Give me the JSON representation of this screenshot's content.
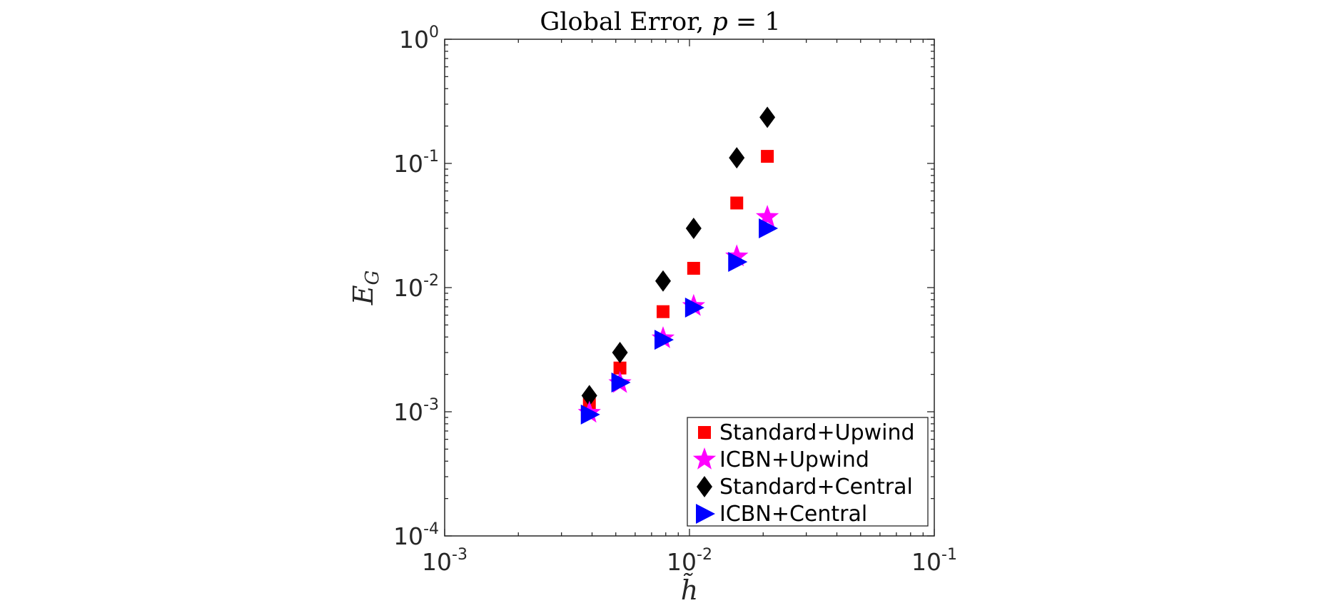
{
  "chart_data": {
    "type": "scatter",
    "title": "Global Error, p = 1",
    "xlabel": "h̃",
    "ylabel": "E_G",
    "xscale": "log",
    "yscale": "log",
    "xlim": [
      0.001,
      0.1
    ],
    "ylim": [
      0.0001,
      1
    ],
    "xticks": [
      {
        "value": 0.001,
        "base": "10",
        "exp": "-3"
      },
      {
        "value": 0.01,
        "base": "10",
        "exp": "-2"
      },
      {
        "value": 0.1,
        "base": "10",
        "exp": "-1"
      }
    ],
    "yticks": [
      {
        "value": 0.0001,
        "base": "10",
        "exp": "-4"
      },
      {
        "value": 0.001,
        "base": "10",
        "exp": "-3"
      },
      {
        "value": 0.01,
        "base": "10",
        "exp": "-2"
      },
      {
        "value": 0.1,
        "base": "10",
        "exp": "-1"
      },
      {
        "value": 1,
        "base": "10",
        "exp": "0"
      }
    ],
    "grid": false,
    "legend_position": "bottom-right",
    "x": [
      0.0039,
      0.0052,
      0.0078,
      0.0104,
      0.0156,
      0.0208
    ],
    "series": [
      {
        "name": "Standard+Upwind",
        "marker": "square",
        "color": "#ff0000",
        "values": [
          0.00115,
          0.00225,
          0.0064,
          0.0143,
          0.048,
          0.114
        ]
      },
      {
        "name": "ICBN+Upwind",
        "marker": "star",
        "color": "#ff00ff",
        "values": [
          0.00098,
          0.0017,
          0.0039,
          0.0071,
          0.0178,
          0.037
        ]
      },
      {
        "name": "Standard+Central",
        "marker": "diamond",
        "color": "#000000",
        "values": [
          0.00135,
          0.003,
          0.0113,
          0.03,
          0.111,
          0.235
        ]
      },
      {
        "name": "ICBN+Central",
        "marker": "triangle-right",
        "color": "#0000ff",
        "values": [
          0.00095,
          0.00172,
          0.0038,
          0.0069,
          0.0161,
          0.03
        ]
      }
    ]
  }
}
